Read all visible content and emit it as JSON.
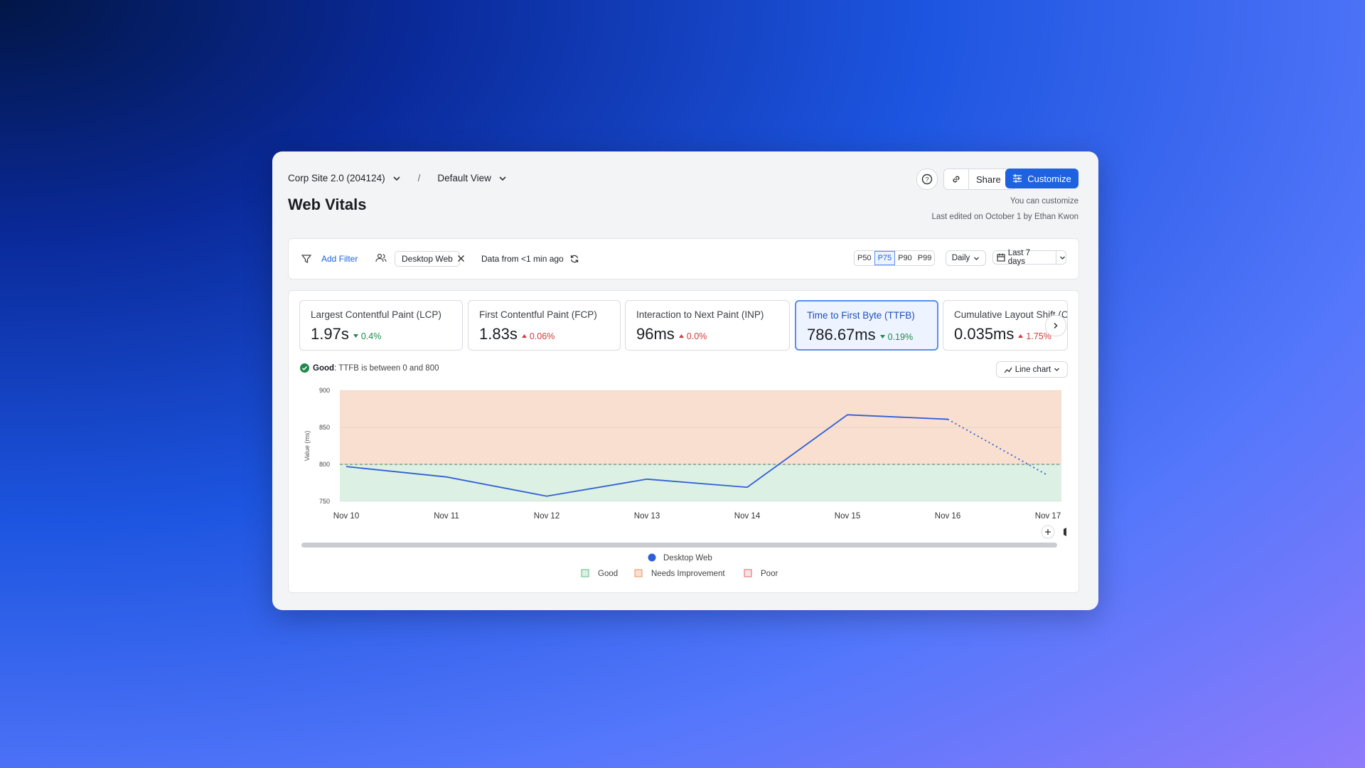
{
  "header": {
    "project": "Corp Site 2.0 (204124)",
    "separator": "/",
    "view": "Default View",
    "title": "Web Vitals",
    "share": "Share",
    "customize": "Customize",
    "note": "You can customize",
    "edited": "Last edited on October 1 by Ethan Kwon"
  },
  "filters": {
    "add_filter": "Add Filter",
    "chip": "Desktop Web",
    "freshness": "Data from <1 min ago",
    "percentiles": [
      "P50",
      "P75",
      "P90",
      "P99"
    ],
    "selected_percentile": "P75",
    "granularity": "Daily",
    "range": "Last 7 days"
  },
  "metrics": [
    {
      "name": "Largest Contentful Paint (LCP)",
      "value": "1.97s",
      "delta": "0.4%",
      "trend": "down",
      "selected": false
    },
    {
      "name": "First Contentful Paint (FCP)",
      "value": "1.83s",
      "delta": "0.06%",
      "trend": "up",
      "selected": false
    },
    {
      "name": "Interaction to Next Paint (INP)",
      "value": "96ms",
      "delta": "0.0%",
      "trend": "up",
      "selected": false
    },
    {
      "name": "Time to First Byte (TTFB)",
      "value": "786.67ms",
      "delta": "0.19%",
      "trend": "down",
      "selected": true
    },
    {
      "name": "Cumulative Layout Shift (CLS)",
      "value": "0.035ms",
      "delta": "1.75%",
      "trend": "up",
      "selected": false
    }
  ],
  "status": {
    "label": "Good",
    "text": ": TTFB is between 0 and 800"
  },
  "chart_toggle": "Line chart",
  "chart_data": {
    "type": "line",
    "y_label": "Value (ms)",
    "categories": [
      "Nov 10",
      "Nov 11",
      "Nov 12",
      "Nov 13",
      "Nov 14",
      "Nov 15",
      "Nov 16",
      "Nov 17"
    ],
    "series": [
      {
        "name": "Desktop Web",
        "color": "#2f5fd6",
        "values": [
          797,
          783,
          757,
          780,
          769,
          867,
          861,
          785
        ]
      }
    ],
    "ylim": [
      750,
      900
    ],
    "yticks": [
      750,
      800,
      850,
      900
    ],
    "grid": true,
    "bands": [
      {
        "name": "Good",
        "color": "#dcf0e4",
        "edge": "#5bb98a",
        "to": 800
      },
      {
        "name": "Needs Improvement",
        "color": "#f9dfd0",
        "edge": "#e9915a",
        "from": 800
      },
      {
        "name": "Poor",
        "color": "#fbe3e3",
        "edge": "#e06565"
      }
    ]
  }
}
